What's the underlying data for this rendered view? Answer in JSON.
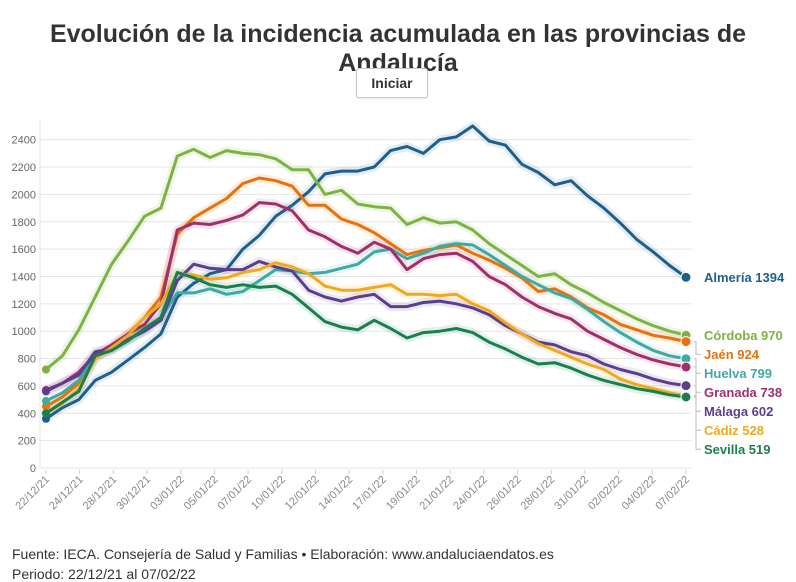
{
  "title": "Evolución de la incidencia acumulada en las provincias de Andalucía",
  "button": {
    "label": "Iniciar"
  },
  "footer": {
    "source": "Fuente: IECA. Consejería de Salud y Familias • Elaboración: www.andaluciaendatos.es",
    "period": "Periodo: 22/12/21 al 07/02/22"
  },
  "chart_data": {
    "type": "line",
    "ylim": [
      0,
      2500
    ],
    "yticks": [
      0,
      200,
      400,
      600,
      800,
      1000,
      1200,
      1400,
      1600,
      1800,
      2000,
      2200,
      2400
    ],
    "x_tick_labels": [
      "22/12/21",
      "24/12/21",
      "28/12/21",
      "30/12/21",
      "03/01/22",
      "05/01/22",
      "07/01/22",
      "10/01/22",
      "12/01/22",
      "14/01/22",
      "17/01/22",
      "19/01/22",
      "21/01/22",
      "24/01/22",
      "26/01/22",
      "28/01/22",
      "31/01/22",
      "02/02/22",
      "04/02/22",
      "07/02/22"
    ],
    "grid": true,
    "series": [
      {
        "name": "Almería",
        "label": "Almería 1394",
        "color": "#1f5f8b",
        "values": [
          360,
          440,
          500,
          640,
          700,
          790,
          880,
          980,
          1250,
          1350,
          1420,
          1450,
          1600,
          1700,
          1840,
          1920,
          2020,
          2150,
          2170,
          2170,
          2200,
          2320,
          2350,
          2300,
          2400,
          2420,
          2500,
          2390,
          2360,
          2220,
          2160,
          2070,
          2100,
          1990,
          1900,
          1790,
          1670,
          1580,
          1480,
          1394
        ]
      },
      {
        "name": "Córdoba",
        "label": "Córdoba 970",
        "color": "#7cb342",
        "values": [
          720,
          820,
          1010,
          1250,
          1490,
          1660,
          1840,
          1900,
          2280,
          2330,
          2270,
          2320,
          2300,
          2290,
          2260,
          2180,
          2180,
          2000,
          2030,
          1930,
          1910,
          1900,
          1780,
          1830,
          1790,
          1800,
          1740,
          1640,
          1560,
          1480,
          1400,
          1420,
          1340,
          1280,
          1210,
          1150,
          1090,
          1040,
          1000,
          970
        ]
      },
      {
        "name": "Jaén",
        "label": "Jaén 924",
        "color": "#e8710a",
        "values": [
          450,
          520,
          620,
          800,
          880,
          980,
          1100,
          1250,
          1710,
          1830,
          1900,
          1970,
          2080,
          2120,
          2100,
          2060,
          1920,
          1920,
          1820,
          1780,
          1720,
          1640,
          1560,
          1590,
          1610,
          1630,
          1570,
          1520,
          1460,
          1390,
          1290,
          1310,
          1250,
          1170,
          1120,
          1050,
          1010,
          970,
          950,
          924
        ]
      },
      {
        "name": "Huelva",
        "label": "Huelva 799",
        "color": "#3fa9a3",
        "values": [
          490,
          550,
          640,
          820,
          860,
          940,
          1000,
          1100,
          1280,
          1280,
          1310,
          1270,
          1290,
          1370,
          1450,
          1440,
          1420,
          1430,
          1460,
          1490,
          1580,
          1600,
          1530,
          1570,
          1620,
          1640,
          1630,
          1560,
          1480,
          1400,
          1340,
          1280,
          1240,
          1160,
          1070,
          990,
          920,
          860,
          820,
          799
        ]
      },
      {
        "name": "Granada",
        "label": "Granada 738",
        "color": "#a0306b",
        "values": [
          570,
          620,
          700,
          830,
          900,
          980,
          1050,
          1200,
          1740,
          1790,
          1780,
          1810,
          1850,
          1940,
          1930,
          1880,
          1740,
          1690,
          1620,
          1570,
          1650,
          1600,
          1450,
          1530,
          1560,
          1570,
          1510,
          1400,
          1340,
          1250,
          1180,
          1130,
          1090,
          1000,
          940,
          880,
          830,
          790,
          760,
          738
        ]
      },
      {
        "name": "Málaga",
        "label": "Málaga 602",
        "color": "#5c3e8f",
        "values": [
          560,
          620,
          680,
          850,
          870,
          940,
          1000,
          1080,
          1370,
          1490,
          1460,
          1450,
          1450,
          1510,
          1470,
          1440,
          1300,
          1250,
          1220,
          1250,
          1270,
          1180,
          1180,
          1210,
          1220,
          1200,
          1170,
          1120,
          1040,
          980,
          920,
          900,
          850,
          820,
          760,
          720,
          690,
          650,
          620,
          602
        ]
      },
      {
        "name": "Cádiz",
        "label": "Cádiz 528",
        "color": "#f0a81c",
        "values": [
          400,
          470,
          580,
          800,
          880,
          970,
          1100,
          1200,
          1420,
          1410,
          1380,
          1390,
          1430,
          1450,
          1500,
          1470,
          1420,
          1330,
          1300,
          1300,
          1320,
          1340,
          1270,
          1270,
          1260,
          1270,
          1200,
          1150,
          1060,
          980,
          910,
          860,
          810,
          760,
          720,
          650,
          610,
          580,
          550,
          528
        ]
      },
      {
        "name": "Sevilla",
        "label": "Sevilla 519",
        "color": "#1a7f4e",
        "values": [
          400,
          480,
          560,
          820,
          860,
          930,
          1020,
          1100,
          1430,
          1390,
          1340,
          1320,
          1340,
          1320,
          1330,
          1270,
          1170,
          1070,
          1030,
          1010,
          1080,
          1020,
          950,
          990,
          1000,
          1020,
          990,
          920,
          870,
          810,
          760,
          770,
          730,
          680,
          640,
          610,
          580,
          560,
          535,
          519
        ]
      }
    ]
  }
}
